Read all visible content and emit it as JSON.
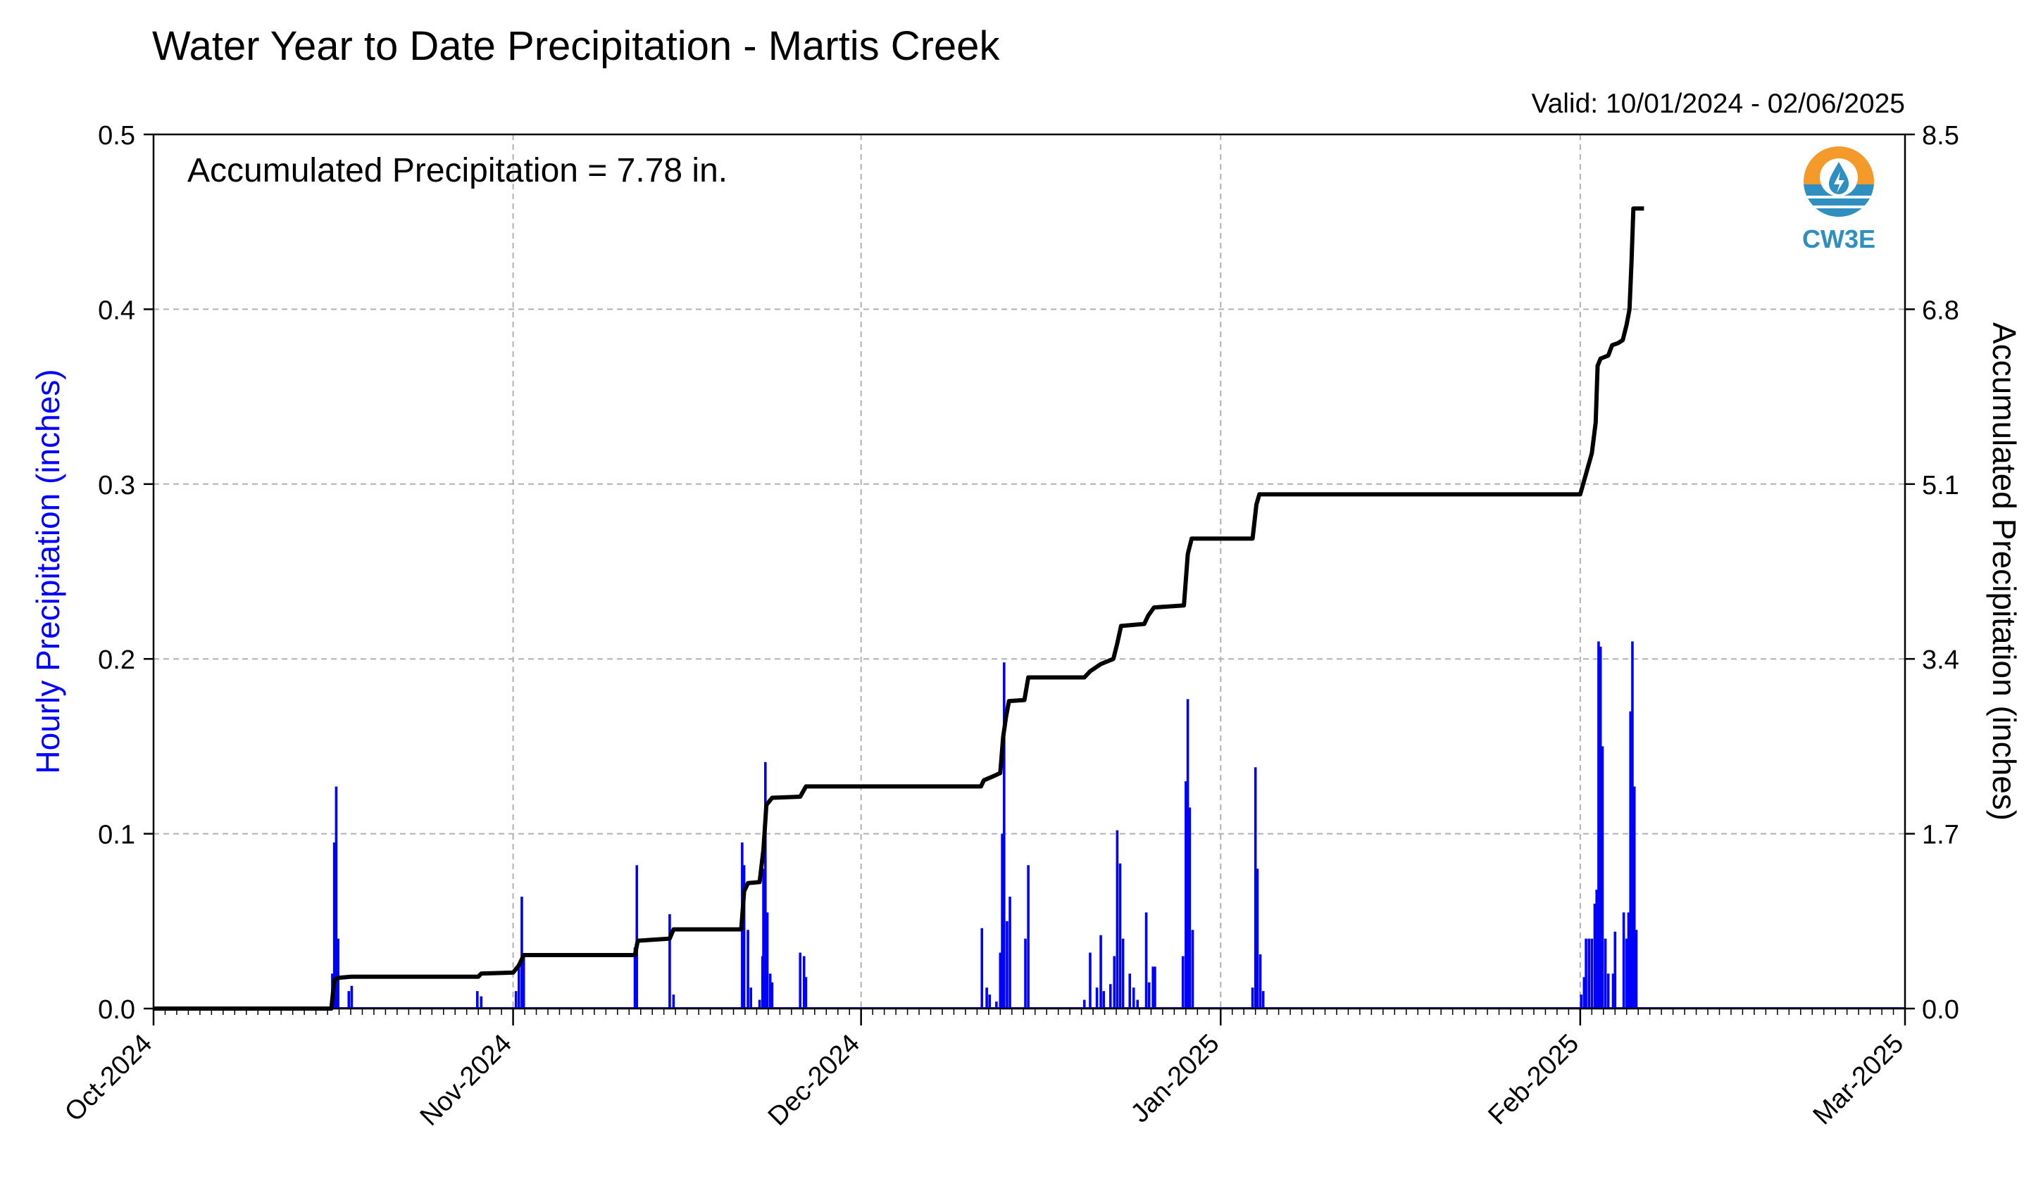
{
  "chart_data": {
    "type": "bar",
    "title": "Water Year to Date Precipitation - Martis Creek",
    "valid_text": "Valid: 10/01/2024 - 02/06/2025",
    "annotation": "Accumulated Precipitation = 7.78 in.",
    "ylabel_left": "Hourly Precipitation (inches)",
    "ylabel_right": "Accumulated Precipitation (inches)",
    "x_range": [
      "2024-10-01",
      "2025-03-01"
    ],
    "x_ticks": [
      "2024-10-01",
      "2024-11-01",
      "2024-12-01",
      "2025-01-01",
      "2025-02-01",
      "2025-03-01"
    ],
    "x_tick_labels": [
      "Oct-2024",
      "Nov-2024",
      "Dec-2024",
      "Jan-2025",
      "Feb-2025",
      "Mar-2025"
    ],
    "ylim_left": [
      0,
      0.5
    ],
    "y_ticks_left": [
      "0.0",
      "0.1",
      "0.2",
      "0.3",
      "0.4",
      "0.5"
    ],
    "ylim_right": [
      0,
      8.5
    ],
    "y_ticks_right": [
      "0.0",
      "1.7",
      "3.4",
      "5.1",
      "6.8",
      "8.5"
    ],
    "grid": true,
    "logo_text": "CW3E",
    "colors": {
      "hourly": "#0000ff",
      "accumulated": "#000000",
      "grid": "#b0b0b0",
      "logo_orange": "#f39a2b",
      "logo_blue": "#2e8fc0"
    },
    "series": [
      {
        "name": "Hourly Precipitation (inches)",
        "axis": "left",
        "points": [
          [
            "2024-10-16T10:00",
            0.02
          ],
          [
            "2024-10-16T14:00",
            0.095
          ],
          [
            "2024-10-16T18:00",
            0.127
          ],
          [
            "2024-10-16T22:00",
            0.04
          ],
          [
            "2024-10-17T20:00",
            0.01
          ],
          [
            "2024-10-18T02:00",
            0.013
          ],
          [
            "2024-10-28T22:00",
            0.01
          ],
          [
            "2024-10-29T06:00",
            0.007
          ],
          [
            "2024-11-01T06:00",
            0.01
          ],
          [
            "2024-11-01T12:00",
            0.025
          ],
          [
            "2024-11-01T18:00",
            0.064
          ],
          [
            "2024-11-01T22:00",
            0.03
          ],
          [
            "2024-11-11T12:00",
            0.035
          ],
          [
            "2024-11-11T16:00",
            0.082
          ],
          [
            "2024-11-14T12:00",
            0.054
          ],
          [
            "2024-11-14T20:00",
            0.008
          ],
          [
            "2024-11-20T18:00",
            0.095
          ],
          [
            "2024-11-20T22:00",
            0.082
          ],
          [
            "2024-11-21T06:00",
            0.045
          ],
          [
            "2024-11-21T12:00",
            0.012
          ],
          [
            "2024-11-22T06:00",
            0.005
          ],
          [
            "2024-11-22T12:00",
            0.03
          ],
          [
            "2024-11-22T14:00",
            0.08
          ],
          [
            "2024-11-22T18:00",
            0.141
          ],
          [
            "2024-11-22T22:00",
            0.055
          ],
          [
            "2024-11-23T04:00",
            0.02
          ],
          [
            "2024-11-23T08:00",
            0.015
          ],
          [
            "2024-11-25T18:00",
            0.032
          ],
          [
            "2024-11-26T02:00",
            0.03
          ],
          [
            "2024-11-26T06:00",
            0.018
          ],
          [
            "2024-12-11T10:00",
            0.046
          ],
          [
            "2024-12-11T20:00",
            0.012
          ],
          [
            "2024-12-12T02:00",
            0.008
          ],
          [
            "2024-12-12T16:00",
            0.004
          ],
          [
            "2024-12-13T00:00",
            0.032
          ],
          [
            "2024-12-13T04:00",
            0.1
          ],
          [
            "2024-12-13T08:00",
            0.198
          ],
          [
            "2024-12-13T14:00",
            0.05
          ],
          [
            "2024-12-13T20:00",
            0.064
          ],
          [
            "2024-12-15T04:00",
            0.04
          ],
          [
            "2024-12-15T10:00",
            0.082
          ],
          [
            "2024-12-20T06:00",
            0.005
          ],
          [
            "2024-12-20T18:00",
            0.032
          ],
          [
            "2024-12-21T08:00",
            0.012
          ],
          [
            "2024-12-21T16:00",
            0.042
          ],
          [
            "2024-12-21T22:00",
            0.01
          ],
          [
            "2024-12-22T12:00",
            0.014
          ],
          [
            "2024-12-22T20:00",
            0.03
          ],
          [
            "2024-12-23T02:00",
            0.102
          ],
          [
            "2024-12-23T08:00",
            0.083
          ],
          [
            "2024-12-23T14:00",
            0.04
          ],
          [
            "2024-12-24T04:00",
            0.02
          ],
          [
            "2024-12-24T12:00",
            0.012
          ],
          [
            "2024-12-24T20:00",
            0.005
          ],
          [
            "2024-12-25T14:00",
            0.055
          ],
          [
            "2024-12-25T20:00",
            0.015
          ],
          [
            "2024-12-26T04:00",
            0.024
          ],
          [
            "2024-12-26T08:00",
            0.024
          ],
          [
            "2024-12-28T18:00",
            0.03
          ],
          [
            "2024-12-29T00:00",
            0.13
          ],
          [
            "2024-12-29T04:00",
            0.177
          ],
          [
            "2024-12-29T08:00",
            0.115
          ],
          [
            "2024-12-29T14:00",
            0.045
          ],
          [
            "2025-01-03T18:00",
            0.012
          ],
          [
            "2025-01-04T00:00",
            0.138
          ],
          [
            "2025-01-04T04:00",
            0.08
          ],
          [
            "2025-01-04T10:00",
            0.031
          ],
          [
            "2025-01-04T16:00",
            0.01
          ],
          [
            "2025-02-01T02:00",
            0.008
          ],
          [
            "2025-02-01T08:00",
            0.018
          ],
          [
            "2025-02-01T12:00",
            0.04
          ],
          [
            "2025-02-01T18:00",
            0.04
          ],
          [
            "2025-02-02T00:00",
            0.04
          ],
          [
            "2025-02-02T06:00",
            0.06
          ],
          [
            "2025-02-02T10:00",
            0.068
          ],
          [
            "2025-02-02T14:00",
            0.21
          ],
          [
            "2025-02-02T18:00",
            0.207
          ],
          [
            "2025-02-02T22:00",
            0.15
          ],
          [
            "2025-02-03T04:00",
            0.04
          ],
          [
            "2025-02-03T10:00",
            0.02
          ],
          [
            "2025-02-03T20:00",
            0.02
          ],
          [
            "2025-02-04T00:00",
            0.044
          ],
          [
            "2025-02-04T18:00",
            0.055
          ],
          [
            "2025-02-05T00:00",
            0.04
          ],
          [
            "2025-02-05T04:00",
            0.055
          ],
          [
            "2025-02-05T08:00",
            0.17
          ],
          [
            "2025-02-05T12:00",
            0.21
          ],
          [
            "2025-02-05T16:00",
            0.127
          ],
          [
            "2025-02-05T20:00",
            0.045
          ]
        ]
      },
      {
        "name": "Accumulated Precipitation (inches)",
        "axis": "right",
        "points": [
          [
            "2024-10-01T00:00",
            0.0
          ],
          [
            "2024-10-16T08:00",
            0.0
          ],
          [
            "2024-10-16T14:00",
            0.28
          ],
          [
            "2024-10-17T00:00",
            0.3
          ],
          [
            "2024-10-18T00:00",
            0.31
          ],
          [
            "2024-10-29T00:00",
            0.31
          ],
          [
            "2024-10-29T06:00",
            0.34
          ],
          [
            "2024-11-01T00:00",
            0.35
          ],
          [
            "2024-11-01T12:00",
            0.42
          ],
          [
            "2024-11-01T22:00",
            0.52
          ],
          [
            "2024-11-11T12:00",
            0.52
          ],
          [
            "2024-11-11T18:00",
            0.66
          ],
          [
            "2024-11-14T12:00",
            0.68
          ],
          [
            "2024-11-14T20:00",
            0.77
          ],
          [
            "2024-11-20T16:00",
            0.77
          ],
          [
            "2024-11-20T22:00",
            1.14
          ],
          [
            "2024-11-21T06:00",
            1.22
          ],
          [
            "2024-11-22T06:00",
            1.23
          ],
          [
            "2024-11-22T14:00",
            1.55
          ],
          [
            "2024-11-22T20:00",
            1.98
          ],
          [
            "2024-11-23T08:00",
            2.05
          ],
          [
            "2024-11-25T18:00",
            2.06
          ],
          [
            "2024-11-26T06:00",
            2.16
          ],
          [
            "2024-12-11T08:00",
            2.16
          ],
          [
            "2024-12-11T14:00",
            2.22
          ],
          [
            "2024-12-12T10:00",
            2.26
          ],
          [
            "2024-12-13T00:00",
            2.29
          ],
          [
            "2024-12-13T06:00",
            2.64
          ],
          [
            "2024-12-13T12:00",
            2.84
          ],
          [
            "2024-12-13T18:00",
            2.99
          ],
          [
            "2024-12-15T02:00",
            3.0
          ],
          [
            "2024-12-15T10:00",
            3.22
          ],
          [
            "2024-12-20T06:00",
            3.22
          ],
          [
            "2024-12-20T18:00",
            3.28
          ],
          [
            "2024-12-21T16:00",
            3.35
          ],
          [
            "2024-12-22T18:00",
            3.4
          ],
          [
            "2024-12-23T02:00",
            3.55
          ],
          [
            "2024-12-23T10:00",
            3.72
          ],
          [
            "2024-12-25T10:00",
            3.74
          ],
          [
            "2024-12-25T18:00",
            3.82
          ],
          [
            "2024-12-26T06:00",
            3.9
          ],
          [
            "2024-12-28T20:00",
            3.92
          ],
          [
            "2024-12-29T04:00",
            4.42
          ],
          [
            "2024-12-29T12:00",
            4.57
          ],
          [
            "2025-01-03T18:00",
            4.57
          ],
          [
            "2025-01-04T02:00",
            4.9
          ],
          [
            "2025-01-04T08:00",
            5.0
          ],
          [
            "2025-02-01T00:00",
            5.0
          ],
          [
            "2025-02-01T12:00",
            5.2
          ],
          [
            "2025-02-02T00:00",
            5.4
          ],
          [
            "2025-02-02T08:00",
            5.7
          ],
          [
            "2025-02-02T12:00",
            6.25
          ],
          [
            "2025-02-02T18:00",
            6.32
          ],
          [
            "2025-02-03T10:00",
            6.35
          ],
          [
            "2025-02-03T18:00",
            6.45
          ],
          [
            "2025-02-04T06:00",
            6.47
          ],
          [
            "2025-02-04T16:00",
            6.5
          ],
          [
            "2025-02-05T00:00",
            6.65
          ],
          [
            "2025-02-05T06:00",
            6.8
          ],
          [
            "2025-02-05T10:00",
            7.25
          ],
          [
            "2025-02-05T14:00",
            7.78
          ],
          [
            "2025-02-06T12:00",
            7.78
          ]
        ]
      }
    ]
  }
}
